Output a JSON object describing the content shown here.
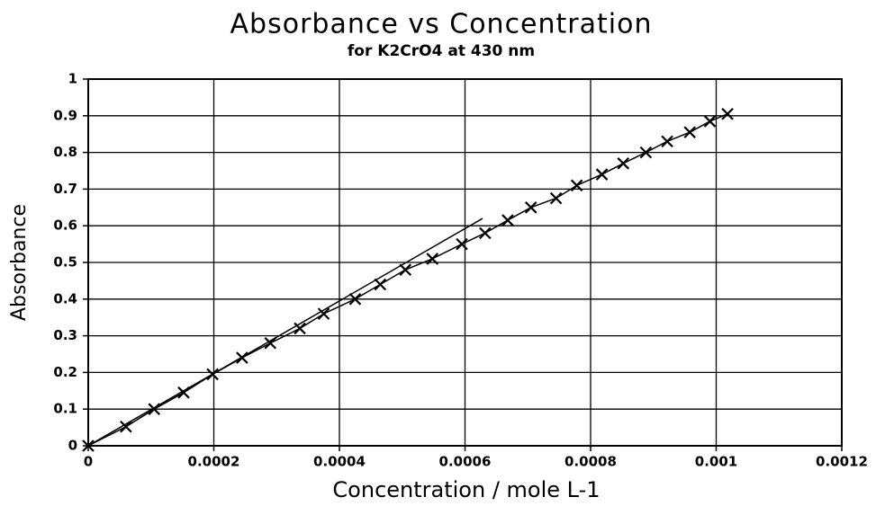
{
  "chart_data": {
    "type": "scatter",
    "title": "Absorbance vs Concentration",
    "subtitle": "for K2CrO4 at 430 nm",
    "x_label": "Concentration / mole L-1",
    "y_label": "Absorbance",
    "xlim": [
      0,
      0.0012
    ],
    "xticks": [
      0,
      0.0002,
      0.0004,
      0.0006,
      0.0008,
      0.001,
      0.0012
    ],
    "ylim": [
      0,
      1
    ],
    "yticks": [
      0,
      0.1,
      0.2,
      0.3,
      0.4,
      0.5,
      0.6,
      0.7,
      0.8,
      0.9,
      1
    ],
    "grid": true,
    "series": [
      {
        "color": "#000000",
        "marker": "x",
        "x": [
          0,
          6e-05,
          0.000105,
          0.000152,
          0.000198,
          0.000245,
          0.00029,
          0.000337,
          0.000375,
          0.000425,
          0.000465,
          0.000505,
          0.000548,
          0.000595,
          0.000632,
          0.000668,
          0.000705,
          0.000745,
          0.000778,
          0.000818,
          0.000852,
          0.000888,
          0.000922,
          0.000958,
          0.00099,
          0.001018
        ],
        "values": [
          0,
          0.052,
          0.1,
          0.145,
          0.195,
          0.24,
          0.28,
          0.32,
          0.36,
          0.4,
          0.44,
          0.48,
          0.51,
          0.55,
          0.58,
          0.615,
          0.65,
          0.675,
          0.71,
          0.74,
          0.77,
          0.8,
          0.83,
          0.855,
          0.885,
          0.905
        ]
      },
      {
        "color": "#000000",
        "marker": "none",
        "x": [
          0,
          0.000628
        ],
        "values": [
          0,
          0.62
        ]
      }
    ]
  }
}
